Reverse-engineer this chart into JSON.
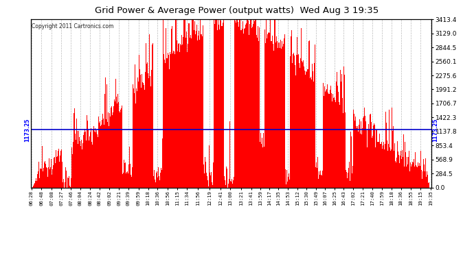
{
  "title": "Grid Power & Average Power (output watts)  Wed Aug 3 19:35",
  "copyright": "Copyright 2011 Cartronics.com",
  "avg_power": 1173.25,
  "ymax": 3413.4,
  "ymin": 0.0,
  "yticks": [
    0.0,
    284.5,
    568.9,
    853.4,
    1137.8,
    1422.3,
    1706.7,
    1991.2,
    2275.6,
    2560.1,
    2844.5,
    3129.0,
    3413.4
  ],
  "bar_color": "#ff0000",
  "avg_line_color": "#0000cc",
  "background_color": "#ffffff",
  "plot_bg_color": "#ffffff",
  "grid_color": "#bbbbbb",
  "title_color": "#000000",
  "tick_labels": [
    "06:28",
    "06:48",
    "07:08",
    "07:27",
    "07:46",
    "08:04",
    "08:24",
    "08:42",
    "09:02",
    "09:21",
    "09:39",
    "09:59",
    "10:18",
    "10:36",
    "10:56",
    "11:15",
    "11:34",
    "11:56",
    "12:19",
    "12:41",
    "13:00",
    "13:21",
    "13:41",
    "13:59",
    "14:17",
    "14:35",
    "14:53",
    "15:12",
    "15:30",
    "15:49",
    "16:07",
    "16:25",
    "16:43",
    "17:02",
    "17:21",
    "17:40",
    "17:59",
    "18:18",
    "18:36",
    "18:55",
    "19:15",
    "19:35"
  ]
}
